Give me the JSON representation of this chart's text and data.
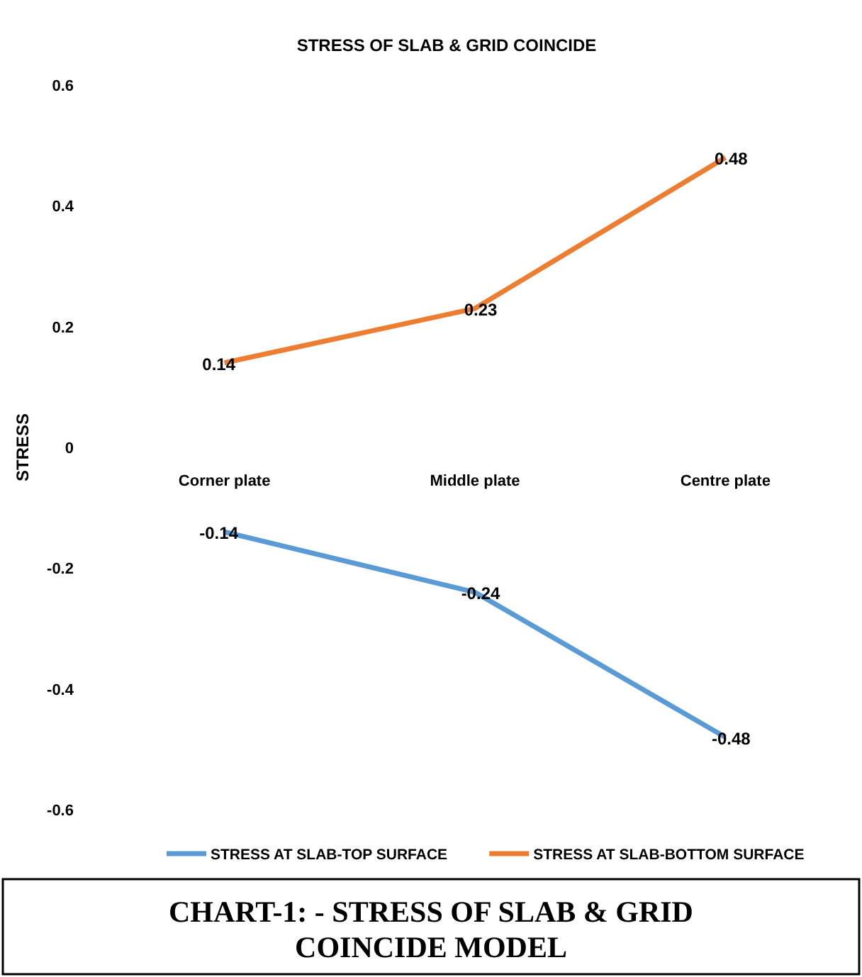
{
  "chart_data": {
    "type": "line",
    "title": "STRESS OF SLAB & GRID COINCIDE",
    "ylabel": "STRESS",
    "categories": [
      "Corner plate",
      "Middle plate",
      "Centre plate"
    ],
    "series": [
      {
        "name": "STRESS AT SLAB-TOP SURFACE",
        "color": "#5b9bd5",
        "values": [
          -0.14,
          -0.24,
          -0.48
        ]
      },
      {
        "name": "STRESS AT SLAB-BOTTOM SURFACE",
        "color": "#ed7d31",
        "values": [
          0.14,
          0.23,
          0.48
        ]
      }
    ],
    "ylim": [
      -0.6,
      0.6
    ],
    "yticks": [
      -0.6,
      -0.4,
      -0.2,
      0,
      0.2,
      0.4,
      0.6
    ],
    "data_labels": true,
    "legend": "bottom",
    "marker": "none",
    "line_style": "solid",
    "annotations": [
      "CHART-1: - STRESS OF SLAB & GRID COINCIDE MODEL"
    ]
  }
}
